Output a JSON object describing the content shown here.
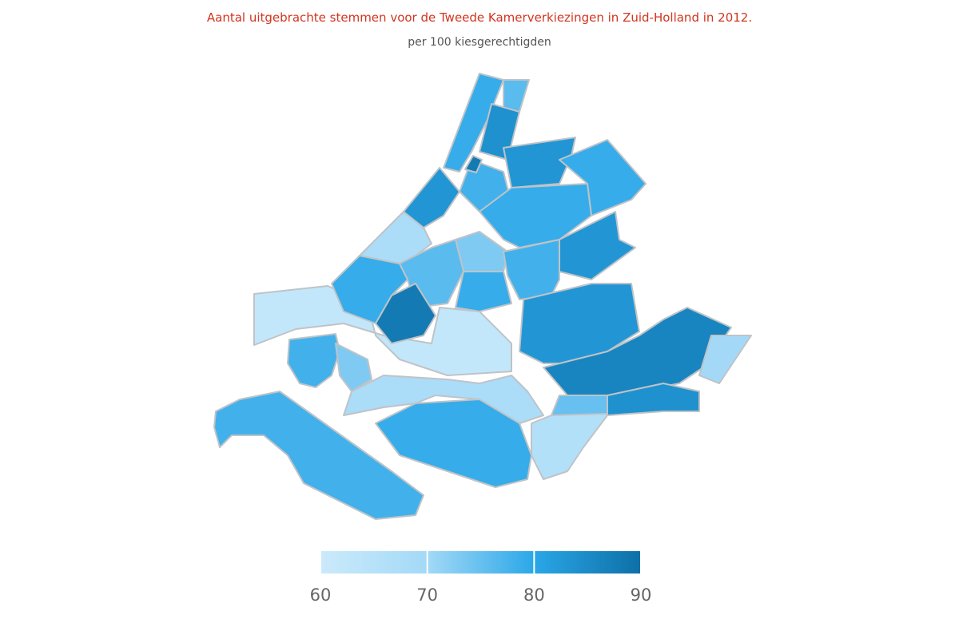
{
  "chart_data": {
    "type": "choropleth",
    "title": "Aantal uitgebrachte stemmen voor de Tweede Kamerverkiezingen in Zuid-Holland in 2012.",
    "subtitle": "per 100 kiesgerechtigden",
    "values": [
      78,
      78,
      73,
      62,
      79,
      68,
      83,
      79,
      76,
      84,
      78,
      88,
      83,
      79,
      79,
      83,
      73,
      76,
      79,
      78,
      88,
      83,
      86,
      70,
      68,
      79,
      66,
      84,
      75
    ],
    "colorlim": [
      60,
      90
    ],
    "colorticks": [
      60,
      70,
      80,
      90
    ],
    "color_stops": [
      "#cbeafb",
      "#a3d9f7",
      "#2aa7e8",
      "#0e6fa6"
    ]
  }
}
